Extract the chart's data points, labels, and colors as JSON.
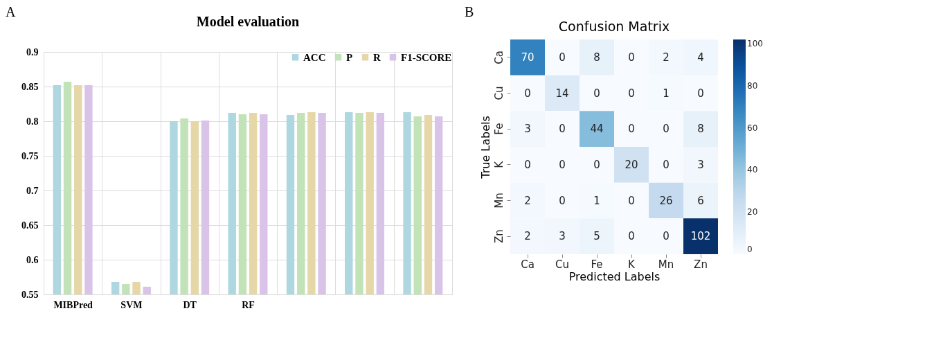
{
  "chart_data": [
    {
      "type": "bar",
      "title": "Model evaluation",
      "annotations": [
        "A"
      ],
      "categories": [
        "MIBPred",
        "SVM",
        "DT",
        "RF",
        null,
        null,
        null
      ],
      "series": [
        {
          "name": "ACC",
          "color": "#aed7e0",
          "values": [
            0.852,
            0.568,
            0.8,
            0.812,
            0.809,
            0.813,
            0.813
          ]
        },
        {
          "name": "P",
          "color": "#c2e2b8",
          "values": [
            0.857,
            0.565,
            0.804,
            0.81,
            0.812,
            0.812,
            0.807
          ]
        },
        {
          "name": "R",
          "color": "#e6d7a8",
          "values": [
            0.852,
            0.568,
            0.8,
            0.812,
            0.813,
            0.813,
            0.809
          ]
        },
        {
          "name": "F1-SCORE",
          "color": "#d9c3e8",
          "values": [
            0.852,
            0.561,
            0.801,
            0.81,
            0.812,
            0.812,
            0.807
          ]
        }
      ],
      "ylim": [
        0.55,
        0.9
      ],
      "yticks": [
        0.55,
        0.6,
        0.65,
        0.7,
        0.75,
        0.8,
        0.85,
        0.9
      ],
      "grid": true,
      "legend": "top right"
    },
    {
      "type": "heatmap",
      "title": "Confusion Matrix",
      "annotations": [
        "B"
      ],
      "xlabel": "Predicted Labels",
      "ylabel": "True Labels",
      "categories": [
        "Ca",
        "Cu",
        "Fe",
        "K",
        "Mn",
        "Zn"
      ],
      "y_categories": [
        "Ca",
        "Cu",
        "Fe",
        "K",
        "Mn",
        "Zn"
      ],
      "cells": [
        [
          70,
          0,
          8,
          0,
          2,
          4
        ],
        [
          0,
          14,
          0,
          0,
          1,
          0
        ],
        [
          3,
          0,
          44,
          0,
          0,
          8
        ],
        [
          0,
          0,
          0,
          20,
          0,
          3
        ],
        [
          2,
          0,
          1,
          0,
          26,
          6
        ],
        [
          2,
          3,
          5,
          0,
          0,
          102
        ]
      ],
      "clim": [
        0,
        102
      ],
      "cticks": [
        0,
        20,
        40,
        60,
        80,
        100
      ],
      "data_labels": true
    }
  ]
}
